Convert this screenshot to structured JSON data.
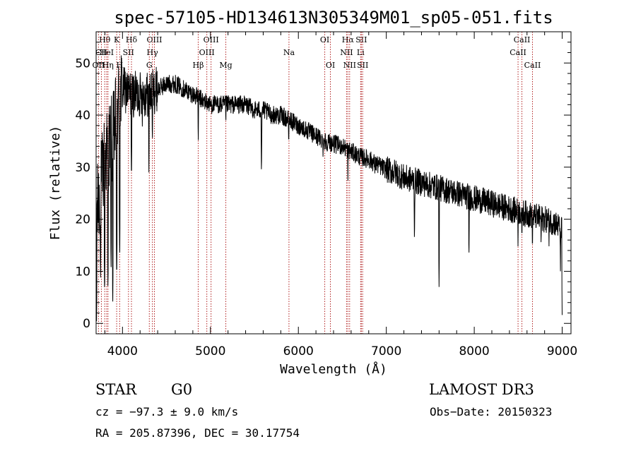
{
  "chart_data": {
    "type": "line",
    "title": "spec-57105-HD134613N305349M01_sp05-051.fits",
    "xlabel": "Wavelength (Å)",
    "ylabel": "Flux (relative)",
    "xlim": [
      3700,
      9100
    ],
    "ylim": [
      -2,
      56
    ],
    "x_ticks": [
      4000,
      5000,
      6000,
      7000,
      8000,
      9000
    ],
    "y_ticks": [
      0,
      10,
      20,
      30,
      40,
      50
    ],
    "grid": false,
    "series": [
      {
        "name": "flux",
        "continuum_x": [
          3700,
          3800,
          3900,
          3950,
          4000,
          4100,
          4200,
          4300,
          4400,
          4500,
          4600,
          4700,
          4800,
          4900,
          5000,
          5100,
          5200,
          5300,
          5400,
          5500,
          5600,
          5700,
          5800,
          5900,
          6000,
          6100,
          6200,
          6300,
          6400,
          6500,
          6600,
          6700,
          6800,
          6900,
          7000,
          7100,
          7200,
          7300,
          7400,
          7500,
          7600,
          7700,
          7800,
          7900,
          8000,
          8100,
          8200,
          8300,
          8400,
          8500,
          8600,
          8700,
          8800,
          8900,
          9000
        ],
        "continuum_y": [
          20,
          32,
          36,
          42,
          45,
          44,
          44,
          44,
          45,
          46,
          46,
          45,
          44,
          43,
          42,
          42,
          42,
          42,
          42,
          41,
          41,
          40,
          40,
          39,
          38,
          37,
          36,
          35,
          34.5,
          34,
          33,
          32,
          31.5,
          30.5,
          29.5,
          29,
          28,
          27.5,
          27,
          26.5,
          26,
          25.5,
          25,
          24.5,
          24,
          23.5,
          23,
          22.5,
          22,
          21.5,
          21,
          20.5,
          20,
          19.5,
          18
        ],
        "absorption_features": [
          {
            "x": 3705,
            "y": 0
          },
          {
            "x": 3750,
            "y": 8
          },
          {
            "x": 3797,
            "y": 5
          },
          {
            "x": 3835,
            "y": 6
          },
          {
            "x": 3870,
            "y": 10
          },
          {
            "x": 3889,
            "y": 3
          },
          {
            "x": 3934,
            "y": 8
          },
          {
            "x": 3968,
            "y": 12
          },
          {
            "x": 4102,
            "y": 27
          },
          {
            "x": 4226,
            "y": 37
          },
          {
            "x": 4300,
            "y": 29
          },
          {
            "x": 4340,
            "y": 34
          },
          {
            "x": 4861,
            "y": 34
          },
          {
            "x": 4920,
            "y": 40
          },
          {
            "x": 5175,
            "y": 37
          },
          {
            "x": 5270,
            "y": 40
          },
          {
            "x": 5580,
            "y": 28
          },
          {
            "x": 5890,
            "y": 33
          },
          {
            "x": 6280,
            "y": 32
          },
          {
            "x": 6563,
            "y": 27
          },
          {
            "x": 6870,
            "y": 28
          },
          {
            "x": 7180,
            "y": 27
          },
          {
            "x": 7320,
            "y": 15
          },
          {
            "x": 7600,
            "y": 7
          },
          {
            "x": 7940,
            "y": 12
          },
          {
            "x": 8498,
            "y": 14
          },
          {
            "x": 8542,
            "y": 15
          },
          {
            "x": 8662,
            "y": 13
          },
          {
            "x": 8760,
            "y": 14
          },
          {
            "x": 8850,
            "y": 14
          },
          {
            "x": 8980,
            "y": 10
          },
          {
            "x": 9000,
            "y": 0
          }
        ]
      }
    ],
    "lines": [
      {
        "label": "OII",
        "x": 3727,
        "row": 2
      },
      {
        "label": "Hθ",
        "x": 3798,
        "row": 0
      },
      {
        "label": "CII",
        "x": 3760,
        "row": 1
      },
      {
        "label": "HeI",
        "x": 3820,
        "row": 1
      },
      {
        "label": "Hη",
        "x": 3835,
        "row": 2
      },
      {
        "label": "K",
        "x": 3934,
        "row": 0
      },
      {
        "label": "SII",
        "x": 4068,
        "row": 1
      },
      {
        "label": "H",
        "x": 3968,
        "row": 2
      },
      {
        "label": "Hδ",
        "x": 4102,
        "row": 0
      },
      {
        "label": "OIII",
        "x": 4363,
        "row": 0
      },
      {
        "label": "Hγ",
        "x": 4340,
        "row": 1
      },
      {
        "label": "G",
        "x": 4305,
        "row": 2
      },
      {
        "label": "OIII",
        "x": 5007,
        "row": 0
      },
      {
        "label": "OIII",
        "x": 4959,
        "row": 1
      },
      {
        "label": "Hβ",
        "x": 4861,
        "row": 2
      },
      {
        "label": "Mg",
        "x": 5175,
        "row": 2
      },
      {
        "label": "Na",
        "x": 5893,
        "row": 1
      },
      {
        "label": "OI",
        "x": 6300,
        "row": 0
      },
      {
        "label": "OI",
        "x": 6364,
        "row": 2
      },
      {
        "label": "Hα",
        "x": 6563,
        "row": 0
      },
      {
        "label": "SII",
        "x": 6716,
        "row": 0
      },
      {
        "label": "NII",
        "x": 6548,
        "row": 1
      },
      {
        "label": "Li",
        "x": 6708,
        "row": 1
      },
      {
        "label": "NII",
        "x": 6583,
        "row": 2
      },
      {
        "label": "SII",
        "x": 6731,
        "row": 2
      },
      {
        "label": "CaII",
        "x": 8542,
        "row": 0
      },
      {
        "label": "CaII",
        "x": 8498,
        "row": 1
      },
      {
        "label": "CaII",
        "x": 8662,
        "row": 2
      }
    ]
  },
  "info": {
    "class": "STAR",
    "subclass": "G0",
    "survey": "LAMOST DR3",
    "cz": "cz = −97.3 ± 9.0 km/s",
    "obs_date": "Obs−Date: 20150323",
    "radec": "RA = 205.87396, DEC =  30.17754"
  },
  "colors": {
    "line_marker": "#b22222",
    "spectrum": "#000000"
  }
}
